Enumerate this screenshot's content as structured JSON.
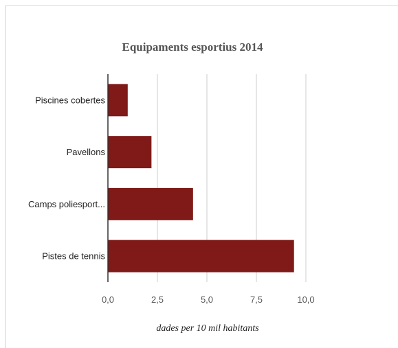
{
  "chart_data": {
    "type": "bar",
    "orientation": "horizontal",
    "title": "Equipaments esportius 2014",
    "xlabel": "dades per 10 mil habitants",
    "ylabel": "",
    "categories": [
      "Piscines cobertes",
      "Pavellons",
      "Camps poliesport...",
      "Pistes de tennis"
    ],
    "values": [
      1.0,
      2.2,
      4.3,
      9.4
    ],
    "xlim": [
      0,
      10
    ],
    "xticks": [
      "0,0",
      "2,5",
      "5,0",
      "7,5",
      "10,0"
    ],
    "grid": true,
    "legend": "none",
    "bar_color": "#7f1a18",
    "grid_color": "#cccccc"
  }
}
